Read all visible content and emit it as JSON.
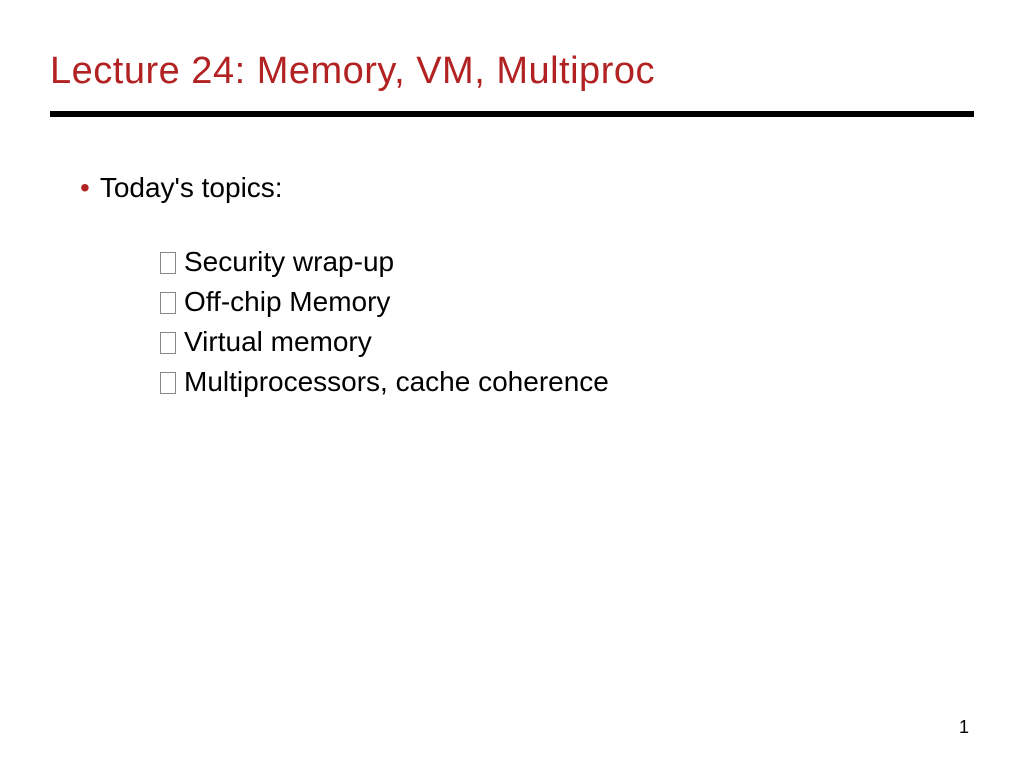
{
  "slide": {
    "title": "Lecture 24: Memory, VM, Multiproc",
    "title_color": "#b22222",
    "title_fontsize": 38,
    "divider_color": "#000000",
    "divider_height": 6,
    "background_color": "#ffffff",
    "main_bullet": {
      "marker_color": "#b22222",
      "text": "Today's topics:",
      "text_color": "#000000",
      "fontsize": 28
    },
    "sub_bullets": {
      "fontsize": 28,
      "text_color": "#000000",
      "marker_style": "hollow-box",
      "items": [
        "Security wrap-up",
        "Off-chip Memory",
        "Virtual memory",
        "Multiprocessors, cache coherence"
      ]
    },
    "page_number": "1",
    "page_number_fontsize": 18
  }
}
